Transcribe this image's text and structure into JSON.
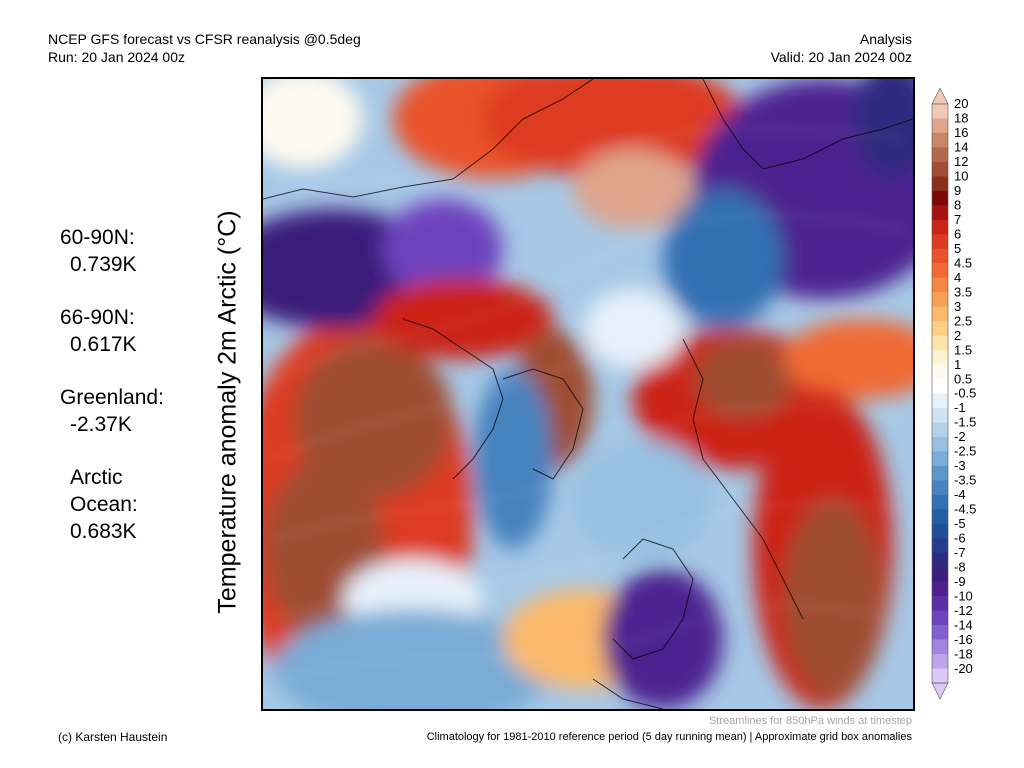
{
  "header": {
    "title": "NCEP GFS forecast vs CFSR reanalysis @0.5deg",
    "run": "Run: 20 Jan 2024 00z",
    "analysis": "Analysis",
    "valid": "Valid: 20 Jan 2024 00z"
  },
  "y_axis_label": "Temperature anomaly 2m Arctic (°C)",
  "regions": [
    {
      "name": "60-90N:",
      "value": "0.739K"
    },
    {
      "name": "66-90N:",
      "value": "0.617K"
    },
    {
      "name": "Greenland:",
      "value": "-2.37K"
    },
    {
      "name": "Arctic Ocean:",
      "value": "0.683K"
    }
  ],
  "colorbar": {
    "labels": [
      "20",
      "18",
      "16",
      "14",
      "12",
      "10",
      "9",
      "8",
      "7",
      "6",
      "5",
      "4.5",
      "4",
      "3.5",
      "3",
      "2.5",
      "2",
      "1.5",
      "1",
      "0.5",
      "-0.5",
      "-1",
      "-1.5",
      "-2",
      "-2.5",
      "-3",
      "-3.5",
      "-4",
      "-4.5",
      "-5",
      "-6",
      "-7",
      "-8",
      "-9",
      "-10",
      "-12",
      "-14",
      "-16",
      "-18",
      "-20"
    ],
    "colors": [
      "#f2c8b8",
      "#dea58c",
      "#c98666",
      "#b5694c",
      "#9f4d33",
      "#8a2f1c",
      "#7a0a0a",
      "#a80f10",
      "#cc2218",
      "#dd3a22",
      "#e9532c",
      "#f06a36",
      "#f58643",
      "#f8a055",
      "#fbb86a",
      "#fdce85",
      "#fee4a8",
      "#fff3d2",
      "#fefaf0",
      "#ffffff",
      "#e7f1fa",
      "#cfe3f2",
      "#b4d3ea",
      "#97c0e0",
      "#79acd6",
      "#5e98cb",
      "#4683bf",
      "#3270b2",
      "#245fa5",
      "#1e4e97",
      "#253d8c",
      "#2d2c80",
      "#3b1f7c",
      "#4d2290",
      "#5b2ea6",
      "#6e43bd",
      "#8660cf",
      "#a182de",
      "#bea6ea",
      "#dccaf6"
    ]
  },
  "footer": {
    "author": "(c) Karsten Haustein",
    "climatology": "Climatology for 1981-2010 reference period (5 day running mean) | Approximate grid box anomalies",
    "streamlines": "Streamlines for 850hPa winds at timestep"
  }
}
